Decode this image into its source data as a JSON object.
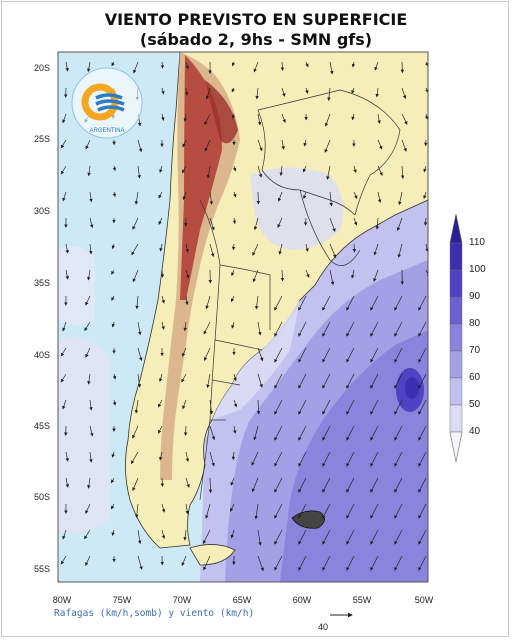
{
  "title_line1": "VIENTO PREVISTO EN SUPERFICIE",
  "title_line2": "(sábado 2, 9hs - SMN gfs)",
  "lat_labels": [
    "20S",
    "25S",
    "30S",
    "35S",
    "40S",
    "45S",
    "50S",
    "55S"
  ],
  "lon_labels": [
    "80W",
    "75W",
    "70W",
    "65W",
    "60W",
    "55W",
    "50W"
  ],
  "colorbar_levels": [
    "110",
    "100",
    "90",
    "80",
    "70",
    "60",
    "50",
    "40"
  ],
  "footer_note": "Rafagas (km/h,somb) y viento (km/h)",
  "scale_label": "40",
  "logo_text": "ARGENTINA",
  "colors": {
    "ocean": "#cde9f6",
    "land_low": "#f6eeb8",
    "andes": "#b3413a",
    "gust_40": "#dcdcf4",
    "gust_50": "#c3c1ef",
    "gust_60": "#a59fe6",
    "gust_70": "#8b84dd",
    "gust_80": "#6a61d1",
    "gust_90": "#4e44c3",
    "gust_100": "#3a2fb0",
    "gust_110": "#28209a"
  }
}
